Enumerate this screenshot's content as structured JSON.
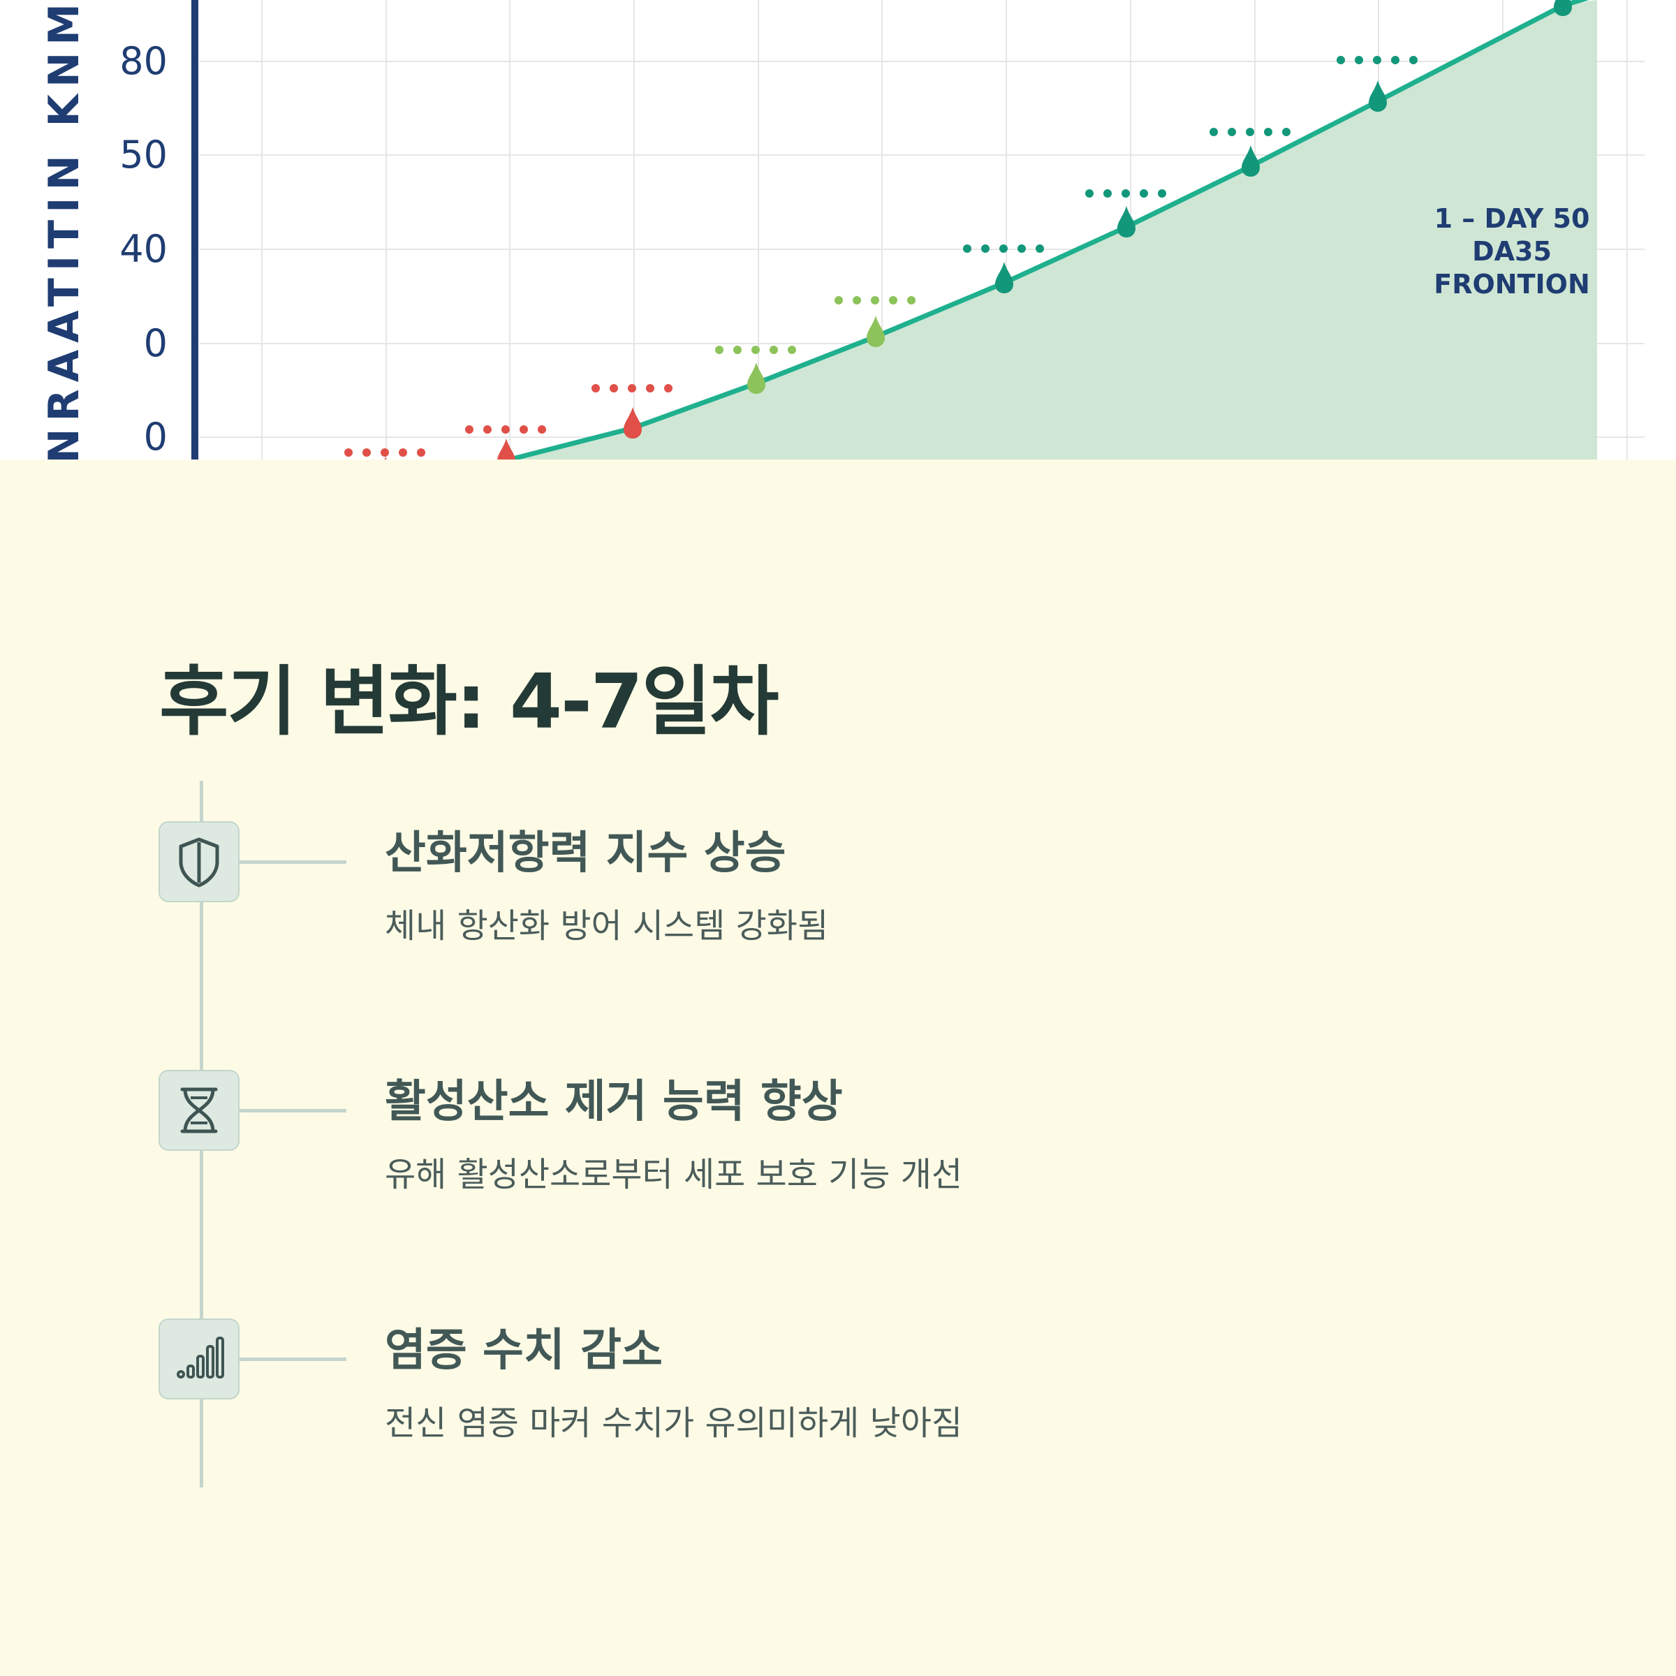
{
  "chart": {
    "ylabel": "ENRAATITIN KNMM",
    "annotation_lines": [
      "1 – DAY 50",
      "DA35",
      "FRONTION"
    ],
    "colors": {
      "axis": "#1f3d72",
      "line": "#1fb08e",
      "fill": "#cfe6d5",
      "grid": "#e6e6e6",
      "marker_red": "#e05048",
      "marker_lightgreen": "#8cc35a",
      "marker_teal": "#13977a"
    },
    "chart_data": {
      "type": "area",
      "yticks": [
        "80",
        "50",
        "40",
        "0",
        "0"
      ],
      "points": [
        {
          "index": 1,
          "marker": "red"
        },
        {
          "index": 2,
          "marker": "red"
        },
        {
          "index": 3,
          "marker": "red"
        },
        {
          "index": 4,
          "marker": "lightgreen"
        },
        {
          "index": 5,
          "marker": "lightgreen"
        },
        {
          "index": 6,
          "marker": "teal"
        },
        {
          "index": 7,
          "marker": "teal"
        },
        {
          "index": 8,
          "marker": "teal"
        },
        {
          "index": 9,
          "marker": "teal"
        },
        {
          "index": 10,
          "marker": "teal"
        }
      ]
    }
  },
  "section": {
    "title": "후기 변화: 4-7일차"
  },
  "items": [
    {
      "icon": "shield-icon",
      "title": "산화저항력 지수 상승",
      "desc": "체내 항산화 방어 시스템 강화됨"
    },
    {
      "icon": "dna-icon",
      "title": "활성산소 제거 능력 향상",
      "desc": "유해 활성산소로부터 세포 보호 기능 개선"
    },
    {
      "icon": "signal-bars-icon",
      "title": "염증 수치 감소",
      "desc": "전신 염증 마커 수치가 유의미하게 낮아짐"
    }
  ]
}
